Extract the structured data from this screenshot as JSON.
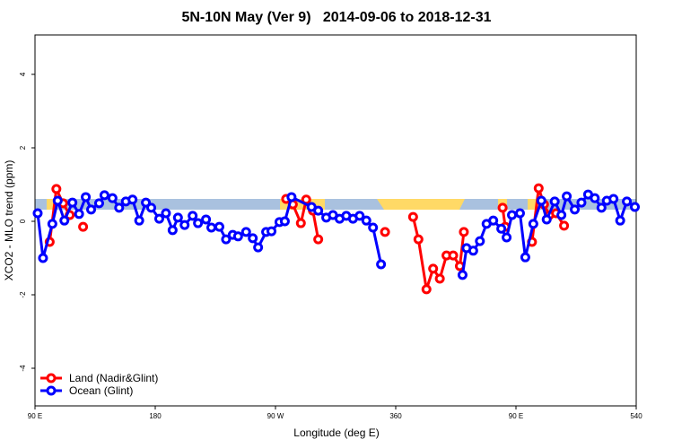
{
  "chart_data": {
    "type": "line",
    "title": "5N-10N May (Ver 9)   2014-09-06 to 2018-12-31",
    "x_label": "Longitude (deg E)",
    "y_label": "XCO2 - MLO trend (ppm)",
    "xlim": [
      90,
      540
    ],
    "ylim": [
      -5,
      5
    ],
    "xticks": [
      {
        "value": 90,
        "label": "90 E"
      },
      180,
      {
        "value": 270,
        "label": "90 W"
      },
      360,
      {
        "value": 450,
        "label": "90 E"
      },
      540
    ],
    "yticks": [
      -4,
      -2,
      0,
      2,
      4
    ],
    "legend": "bottomleft",
    "series": [
      {
        "name": "Land (Nadir&Glint)",
        "color": "#ff0000",
        "x": [
          101,
          106,
          111,
          116,
          null,
          126,
          null,
          278,
          283,
          289,
          293,
          298,
          302,
          null,
          352,
          null,
          373,
          377,
          383,
          388,
          393,
          398,
          403,
          408,
          411,
          null,
          440,
          442,
          null,
          462,
          467,
          471,
          475,
          480,
          486
        ],
        "values": [
          -0.56,
          0.88,
          0.49,
          0.17,
          null,
          -0.15,
          null,
          0.61,
          0.46,
          -0.05,
          0.59,
          0.29,
          -0.49,
          null,
          -0.29,
          null,
          0.12,
          -0.49,
          -1.85,
          -1.29,
          -1.56,
          -0.93,
          -0.93,
          -1.22,
          -0.29,
          null,
          0.37,
          -0.15,
          null,
          -0.56,
          0.9,
          0.46,
          0.17,
          0.22,
          -0.12
        ]
      },
      {
        "name": "Ocean (Glint)",
        "color": "#0000ff",
        "x": [
          92,
          96,
          103,
          107,
          112,
          118,
          123,
          128,
          132,
          138,
          142,
          148,
          153,
          158,
          163,
          168,
          173,
          177,
          183,
          188,
          193,
          197,
          202,
          208,
          212,
          218,
          222,
          228,
          233,
          238,
          242,
          248,
          253,
          257,
          263,
          267,
          273,
          277,
          282,
          297,
          302,
          308,
          313,
          318,
          323,
          328,
          333,
          338,
          343,
          349,
          null,
          410,
          413,
          418,
          423,
          428,
          433,
          439,
          443,
          447,
          453,
          457,
          463,
          469,
          473,
          479,
          484,
          488,
          494,
          499,
          504,
          509,
          514,
          518,
          523,
          528,
          533,
          539
        ],
        "values": [
          0.22,
          -1.0,
          -0.07,
          0.56,
          0.02,
          0.51,
          0.2,
          0.66,
          0.32,
          0.49,
          0.71,
          0.63,
          0.37,
          0.54,
          0.59,
          0.02,
          0.51,
          0.37,
          0.07,
          0.22,
          -0.24,
          0.1,
          -0.1,
          0.15,
          -0.05,
          0.05,
          -0.17,
          -0.15,
          -0.49,
          -0.37,
          -0.41,
          -0.29,
          -0.46,
          -0.71,
          -0.29,
          -0.27,
          -0.02,
          0,
          0.66,
          0.39,
          0.29,
          0.1,
          0.17,
          0.07,
          0.15,
          0.07,
          0.15,
          0.02,
          -0.17,
          -1.17,
          null,
          -1.46,
          -0.73,
          -0.8,
          -0.54,
          -0.07,
          0.02,
          -0.2,
          -0.44,
          0.17,
          0.22,
          -0.98,
          -0.07,
          0.56,
          0.05,
          0.54,
          0.17,
          0.68,
          0.32,
          0.51,
          0.73,
          0.63,
          0.37,
          0.56,
          0.61,
          0.02,
          0.54,
          0.39
        ]
      }
    ]
  }
}
